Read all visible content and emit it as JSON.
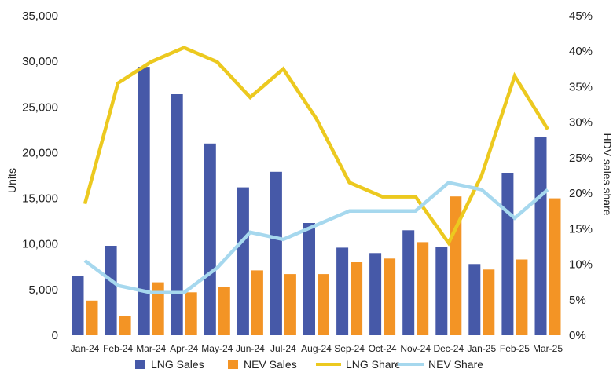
{
  "chart_data": {
    "type": "bar",
    "categories": [
      "Jan-24",
      "Feb-24",
      "Mar-24",
      "Apr-24",
      "May-24",
      "Jun-24",
      "Jul-24",
      "Aug-24",
      "Sep-24",
      "Oct-24",
      "Nov-24",
      "Dec-24",
      "Jan-25",
      "Feb-25",
      "Mar-25"
    ],
    "series": [
      {
        "name": "LNG Sales",
        "type": "bar",
        "axis": "left",
        "color": "#4659a8",
        "values": [
          6500,
          9800,
          29400,
          26400,
          21000,
          16200,
          17900,
          12300,
          9600,
          9000,
          11500,
          9700,
          7800,
          17800,
          21700
        ]
      },
      {
        "name": "NEV Sales",
        "type": "bar",
        "axis": "left",
        "color": "#f39425",
        "values": [
          3800,
          2100,
          5800,
          4700,
          5300,
          7100,
          6700,
          6700,
          8000,
          8400,
          10200,
          15200,
          7200,
          8300,
          15000
        ]
      },
      {
        "name": "LNG Share",
        "type": "line",
        "axis": "right",
        "color": "#ecc91f",
        "values": [
          18.5,
          35.5,
          38.5,
          40.5,
          38.5,
          33.5,
          37.5,
          30.5,
          21.5,
          19.5,
          19.5,
          13.0,
          22.5,
          36.5,
          29.0
        ]
      },
      {
        "name": "NEV Share",
        "type": "line",
        "axis": "right",
        "color": "#a6d8ee",
        "values": [
          10.5,
          7.0,
          6.0,
          6.0,
          9.5,
          14.5,
          13.5,
          15.5,
          17.5,
          17.5,
          17.5,
          21.5,
          20.5,
          16.5,
          20.5
        ]
      }
    ],
    "ylabel": "Units",
    "y2label": "HDV sales share",
    "ylim": [
      0,
      35000
    ],
    "y2lim": [
      0,
      45
    ],
    "yticks": [
      "0",
      "5,000",
      "10,000",
      "15,000",
      "20,000",
      "25,000",
      "30,000",
      "35,000"
    ],
    "y2ticks": [
      "0%",
      "5%",
      "10%",
      "15%",
      "20%",
      "25%",
      "30%",
      "35%",
      "40%",
      "45%"
    ],
    "grid": false,
    "legend": "bottom"
  }
}
